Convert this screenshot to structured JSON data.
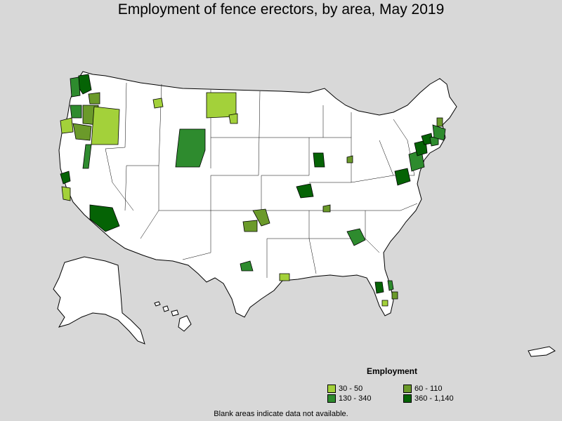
{
  "title": "Employment of fence erectors, by area, May 2019",
  "legend": {
    "title": "Employment",
    "items": [
      {
        "label": "30 - 50",
        "color": "#a3d13a"
      },
      {
        "label": "60 - 110",
        "color": "#6b9a2a"
      },
      {
        "label": "130 - 340",
        "color": "#2e8b2e"
      },
      {
        "label": "360 - 1,140",
        "color": "#056305"
      }
    ]
  },
  "footnote": "Blank areas indicate data not available."
}
